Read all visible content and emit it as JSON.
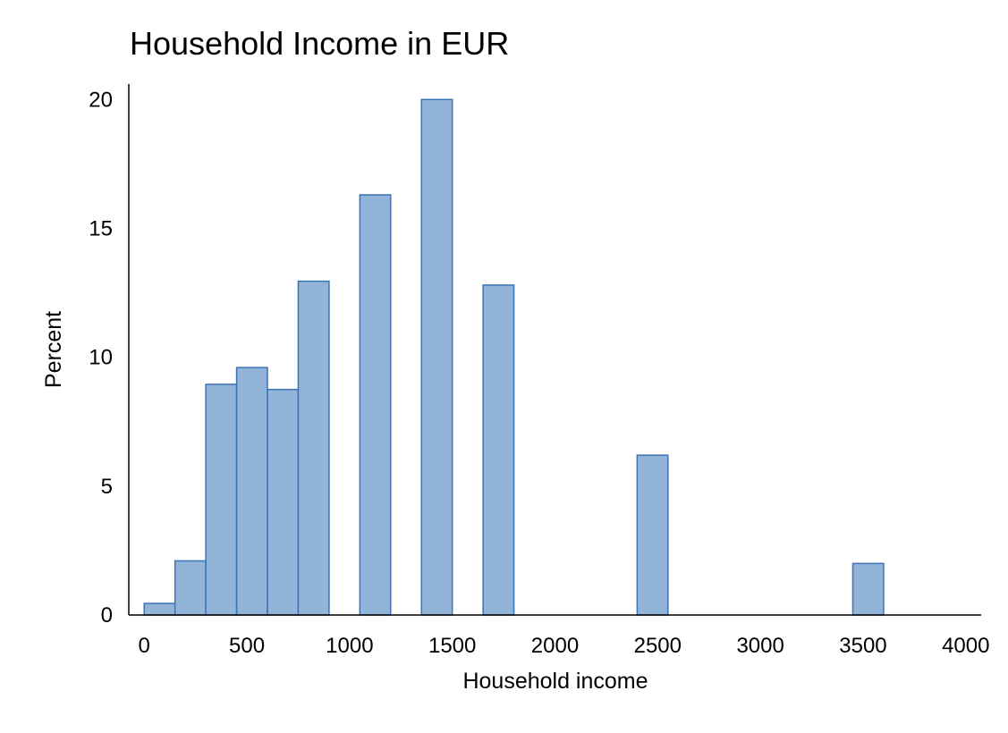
{
  "chart_data": {
    "type": "bar",
    "title": "Household Income in EUR",
    "xlabel": "Household income",
    "ylabel": "Percent",
    "xlim": [
      -75,
      4075
    ],
    "ylim": [
      0,
      20.6
    ],
    "xticks": [
      0,
      500,
      1000,
      1500,
      2000,
      2500,
      3000,
      3500,
      4000
    ],
    "yticks": [
      0,
      5,
      10,
      15,
      20
    ],
    "bin_width": 150,
    "bars": [
      {
        "start": 0,
        "value": 0.45
      },
      {
        "start": 150,
        "value": 2.1
      },
      {
        "start": 300,
        "value": 8.95
      },
      {
        "start": 450,
        "value": 9.6
      },
      {
        "start": 600,
        "value": 8.75
      },
      {
        "start": 750,
        "value": 12.95
      },
      {
        "start": 1050,
        "value": 16.3
      },
      {
        "start": 1350,
        "value": 20.0
      },
      {
        "start": 1650,
        "value": 12.8
      },
      {
        "start": 2400,
        "value": 6.2
      },
      {
        "start": 3450,
        "value": 2.0
      }
    ],
    "grid": false,
    "legend": "none",
    "colors": {
      "bar_fill": "#92b4d8",
      "bar_stroke": "#3b73b5",
      "axis": "#000000"
    }
  }
}
